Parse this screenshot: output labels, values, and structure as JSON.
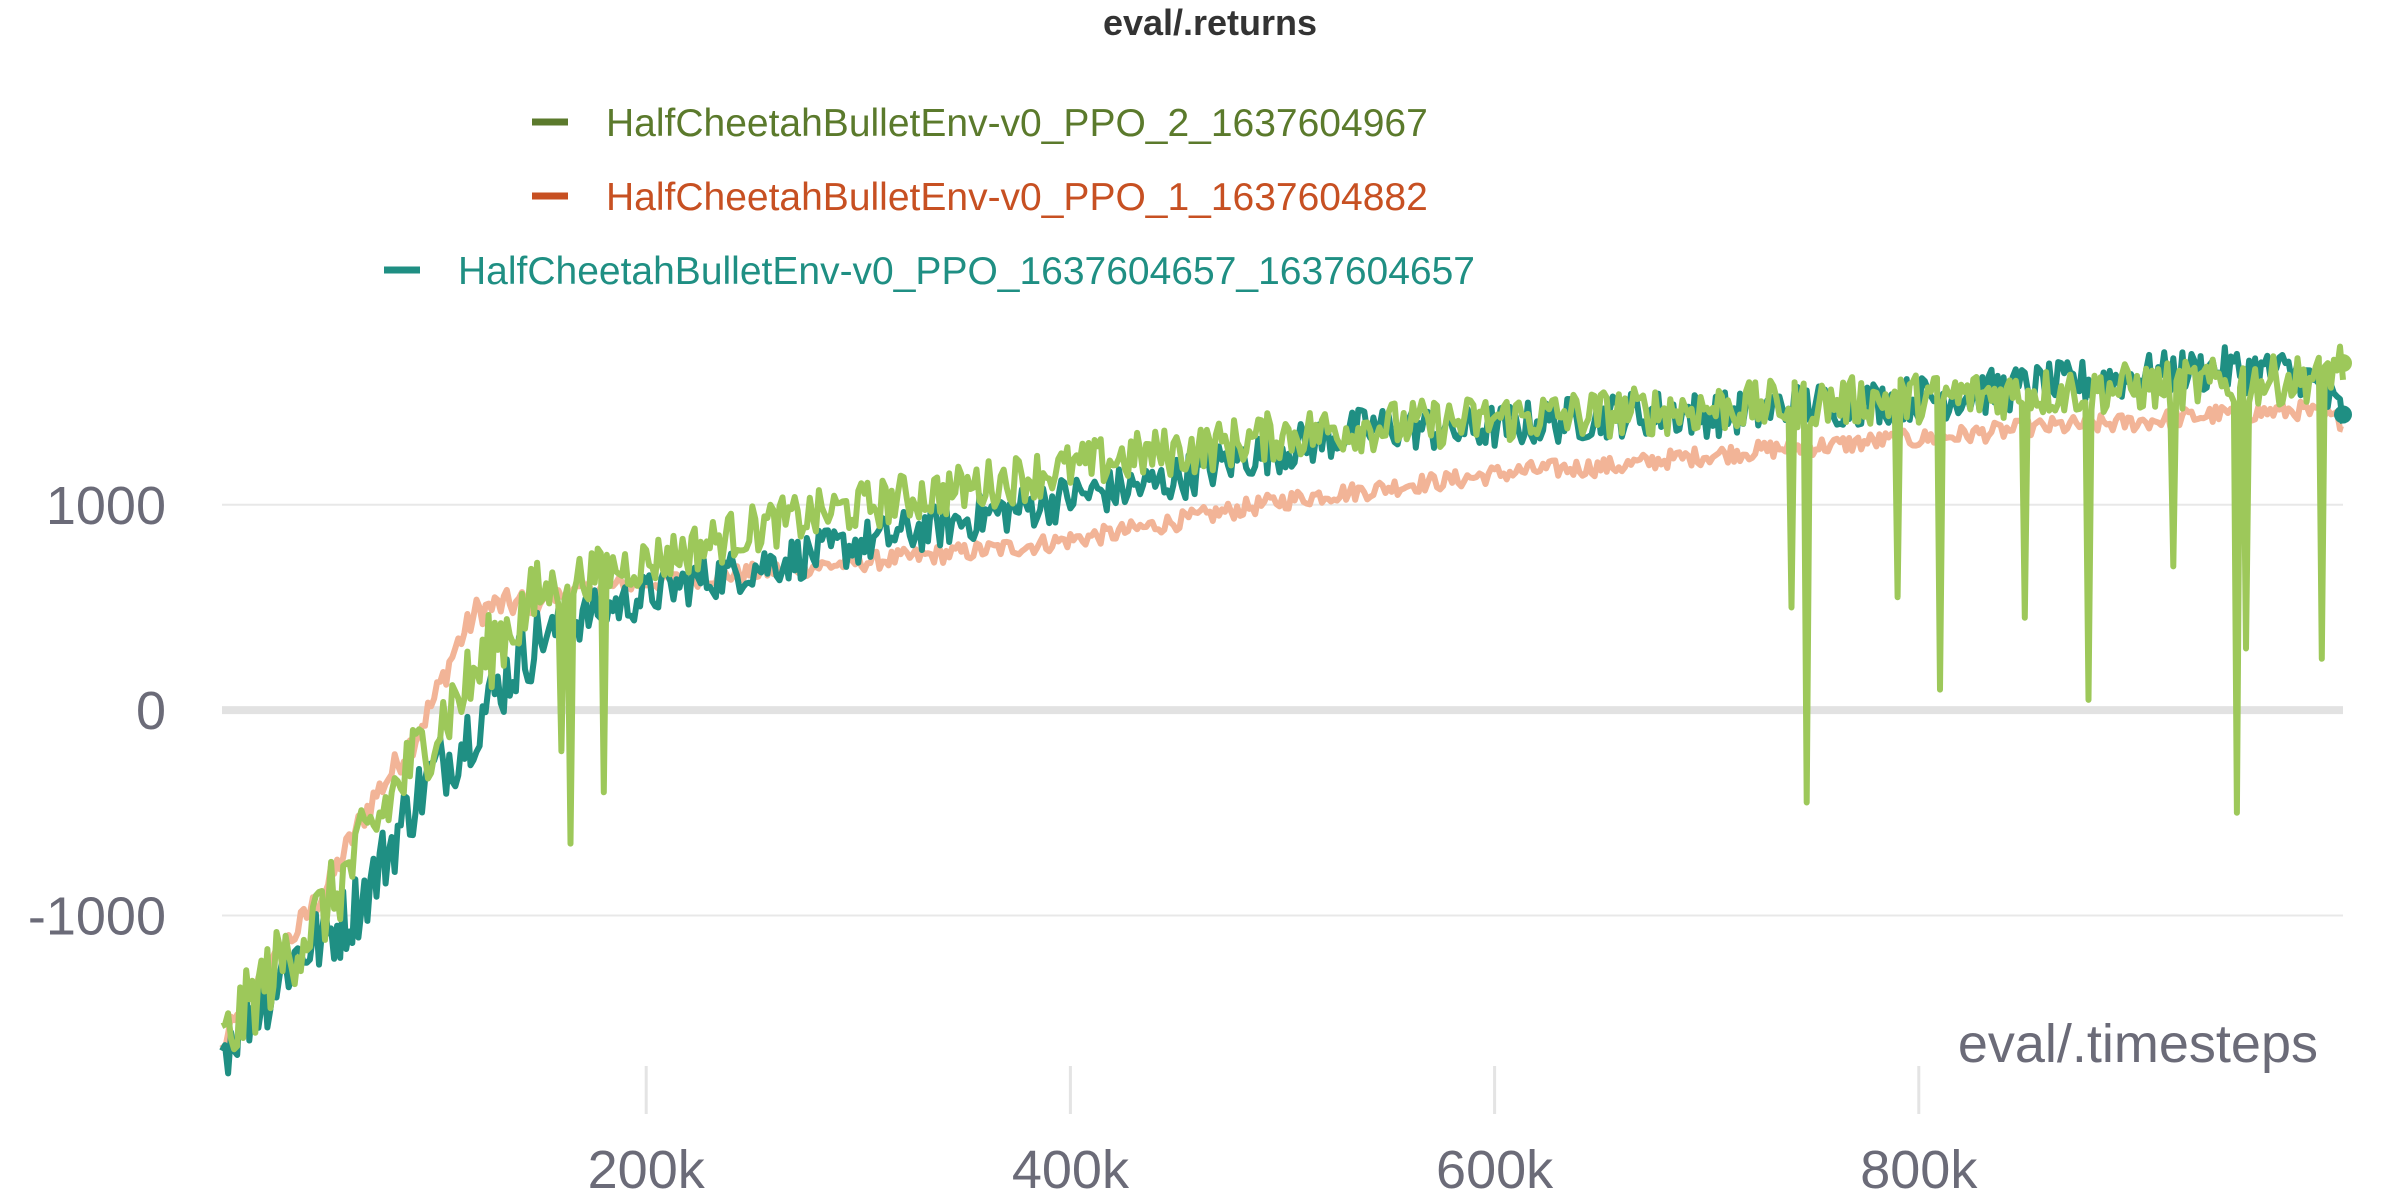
{
  "chart_data": {
    "type": "line",
    "title": "eval/.returns",
    "xlabel": "eval/.timesteps",
    "ylabel": "",
    "xlim": [
      0,
      1000000
    ],
    "ylim": [
      -1850,
      1900
    ],
    "x_ticks": [
      200000,
      400000,
      600000,
      800000
    ],
    "x_tick_labels": [
      "200k",
      "400k",
      "600k",
      "800k"
    ],
    "y_ticks": [
      -1000,
      0,
      1000
    ],
    "y_tick_labels": [
      "-1000",
      "0",
      "1000"
    ],
    "grid": "horizontal",
    "legend_position": "top",
    "series": [
      {
        "name": "HalfCheetahBulletEnv-v0_PPO_1637604657_1637604657",
        "color": "#1f8f83",
        "points": [
          [
            0,
            -1650
          ],
          [
            10000,
            -1500
          ],
          [
            20000,
            -1400
          ],
          [
            30000,
            -1250
          ],
          [
            40000,
            -1150
          ],
          [
            50000,
            -1100
          ],
          [
            60000,
            -1000
          ],
          [
            70000,
            -850
          ],
          [
            80000,
            -650
          ],
          [
            90000,
            -450
          ],
          [
            100000,
            -300
          ],
          [
            110000,
            -200
          ],
          [
            120000,
            -50
          ],
          [
            130000,
            100
          ],
          [
            140000,
            250
          ],
          [
            150000,
            350
          ],
          [
            160000,
            400
          ],
          [
            170000,
            450
          ],
          [
            180000,
            500
          ],
          [
            190000,
            520
          ],
          [
            200000,
            560
          ],
          [
            220000,
            620
          ],
          [
            240000,
            670
          ],
          [
            260000,
            720
          ],
          [
            280000,
            760
          ],
          [
            300000,
            810
          ],
          [
            320000,
            860
          ],
          [
            340000,
            900
          ],
          [
            360000,
            950
          ],
          [
            380000,
            990
          ],
          [
            400000,
            1040
          ],
          [
            420000,
            1070
          ],
          [
            440000,
            1100
          ],
          [
            460000,
            1160
          ],
          [
            480000,
            1230
          ],
          [
            500000,
            1270
          ],
          [
            520000,
            1320
          ],
          [
            540000,
            1370
          ],
          [
            560000,
            1380
          ],
          [
            580000,
            1360
          ],
          [
            600000,
            1380
          ],
          [
            620000,
            1400
          ],
          [
            640000,
            1420
          ],
          [
            660000,
            1440
          ],
          [
            680000,
            1450
          ],
          [
            700000,
            1440
          ],
          [
            720000,
            1450
          ],
          [
            740000,
            1480
          ],
          [
            760000,
            1490
          ],
          [
            780000,
            1500
          ],
          [
            800000,
            1520
          ],
          [
            820000,
            1530
          ],
          [
            840000,
            1560
          ],
          [
            860000,
            1580
          ],
          [
            880000,
            1600
          ],
          [
            900000,
            1620
          ],
          [
            920000,
            1640
          ],
          [
            940000,
            1660
          ],
          [
            960000,
            1650
          ],
          [
            980000,
            1640
          ],
          [
            1000000,
            1440
          ]
        ]
      },
      {
        "name": "HalfCheetahBulletEnv-v0_PPO_1_1637604882",
        "color": "#f2b497",
        "legend_color": "#c75022",
        "points": [
          [
            0,
            -1650
          ],
          [
            10000,
            -1450
          ],
          [
            20000,
            -1300
          ],
          [
            30000,
            -1150
          ],
          [
            40000,
            -1000
          ],
          [
            50000,
            -850
          ],
          [
            60000,
            -650
          ],
          [
            70000,
            -450
          ],
          [
            80000,
            -300
          ],
          [
            90000,
            -150
          ],
          [
            100000,
            50
          ],
          [
            110000,
            300
          ],
          [
            120000,
            480
          ],
          [
            130000,
            510
          ],
          [
            140000,
            520
          ],
          [
            150000,
            540
          ],
          [
            160000,
            560
          ],
          [
            170000,
            580
          ],
          [
            180000,
            600
          ],
          [
            190000,
            610
          ],
          [
            200000,
            620
          ],
          [
            220000,
            640
          ],
          [
            240000,
            660
          ],
          [
            260000,
            680
          ],
          [
            280000,
            700
          ],
          [
            300000,
            720
          ],
          [
            320000,
            740
          ],
          [
            340000,
            760
          ],
          [
            360000,
            780
          ],
          [
            380000,
            800
          ],
          [
            400000,
            830
          ],
          [
            420000,
            860
          ],
          [
            440000,
            900
          ],
          [
            460000,
            940
          ],
          [
            480000,
            980
          ],
          [
            500000,
            1020
          ],
          [
            520000,
            1050
          ],
          [
            540000,
            1070
          ],
          [
            560000,
            1100
          ],
          [
            580000,
            1120
          ],
          [
            600000,
            1150
          ],
          [
            620000,
            1170
          ],
          [
            640000,
            1180
          ],
          [
            660000,
            1190
          ],
          [
            680000,
            1220
          ],
          [
            700000,
            1240
          ],
          [
            720000,
            1260
          ],
          [
            740000,
            1280
          ],
          [
            760000,
            1290
          ],
          [
            780000,
            1310
          ],
          [
            800000,
            1320
          ],
          [
            820000,
            1340
          ],
          [
            840000,
            1360
          ],
          [
            860000,
            1380
          ],
          [
            880000,
            1390
          ],
          [
            900000,
            1400
          ],
          [
            920000,
            1420
          ],
          [
            940000,
            1440
          ],
          [
            960000,
            1450
          ],
          [
            980000,
            1460
          ],
          [
            1000000,
            1410
          ]
        ]
      },
      {
        "name": "HalfCheetahBulletEnv-v0_PPO_2_1637604967",
        "color": "#9dc85a",
        "legend_color": "#5b7a2c",
        "points": [
          [
            0,
            -1650
          ],
          [
            10000,
            -1480
          ],
          [
            20000,
            -1320
          ],
          [
            30000,
            -1200
          ],
          [
            40000,
            -1080
          ],
          [
            50000,
            -950
          ],
          [
            60000,
            -780
          ],
          [
            70000,
            -600
          ],
          [
            80000,
            -420
          ],
          [
            90000,
            -250
          ],
          [
            100000,
            -100
          ],
          [
            110000,
            50
          ],
          [
            120000,
            180
          ],
          [
            130000,
            350
          ],
          [
            140000,
            450
          ],
          [
            150000,
            560
          ],
          [
            160000,
            620
          ],
          [
            170000,
            650
          ],
          [
            180000,
            680
          ],
          [
            190000,
            700
          ],
          [
            200000,
            720
          ],
          [
            220000,
            780
          ],
          [
            240000,
            850
          ],
          [
            260000,
            910
          ],
          [
            280000,
            950
          ],
          [
            300000,
            990
          ],
          [
            320000,
            1030
          ],
          [
            340000,
            1060
          ],
          [
            360000,
            1100
          ],
          [
            380000,
            1140
          ],
          [
            400000,
            1180
          ],
          [
            420000,
            1220
          ],
          [
            440000,
            1250
          ],
          [
            460000,
            1270
          ],
          [
            480000,
            1310
          ],
          [
            500000,
            1340
          ],
          [
            520000,
            1360
          ],
          [
            540000,
            1380
          ],
          [
            560000,
            1390
          ],
          [
            580000,
            1400
          ],
          [
            600000,
            1420
          ],
          [
            620000,
            1430
          ],
          [
            640000,
            1440
          ],
          [
            660000,
            1450
          ],
          [
            680000,
            1460
          ],
          [
            700000,
            1470
          ],
          [
            720000,
            1480
          ],
          [
            740000,
            1490
          ],
          [
            760000,
            1500
          ],
          [
            780000,
            1510
          ],
          [
            800000,
            1520
          ],
          [
            820000,
            1530
          ],
          [
            840000,
            1540
          ],
          [
            860000,
            1550
          ],
          [
            880000,
            1560
          ],
          [
            900000,
            1570
          ],
          [
            920000,
            1580
          ],
          [
            940000,
            1590
          ],
          [
            960000,
            1600
          ],
          [
            980000,
            1610
          ],
          [
            1000000,
            1690
          ]
        ],
        "dips": [
          [
            165000,
            -650
          ],
          [
            180000,
            -400
          ],
          [
            160000,
            -200
          ],
          [
            740000,
            500
          ],
          [
            747000,
            -450
          ],
          [
            790000,
            1150
          ],
          [
            790000,
            550
          ],
          [
            810000,
            100
          ],
          [
            850000,
            450
          ],
          [
            880000,
            50
          ],
          [
            920000,
            700
          ],
          [
            950000,
            -500
          ],
          [
            955000,
            300
          ],
          [
            990000,
            250
          ]
        ]
      }
    ]
  }
}
